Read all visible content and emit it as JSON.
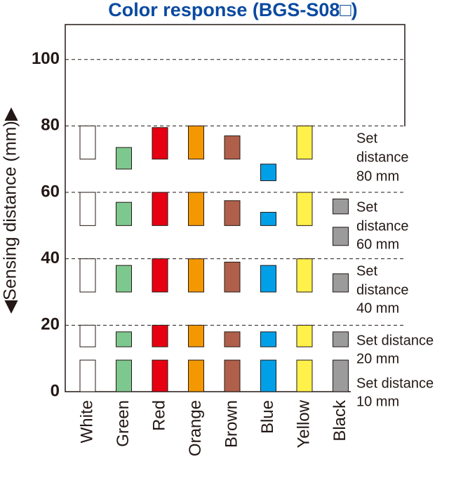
{
  "chart_data": {
    "type": "floating-bar",
    "title": "Color response (BGS-S08□)",
    "y_label": "◀Sensing distance (mm)▶",
    "categories": [
      "White",
      "Green",
      "Red",
      "Orange",
      "Brown",
      "Blue",
      "Yellow",
      "Black"
    ],
    "colors": [
      "#ffffff",
      "#7dc88e",
      "#e60012",
      "#f39800",
      "#b0604a",
      "#00a0e9",
      "#fff04a",
      "#9b9b9b"
    ],
    "ylim": [
      0,
      110.5
    ],
    "yticks": [
      0,
      20,
      40,
      60,
      80,
      100
    ],
    "grid": true,
    "series": [
      {
        "label_lines": [
          "Set",
          "distance",
          "80 mm"
        ],
        "values": [
          [
            [
              70,
              80
            ]
          ],
          [
            [
              67,
              73.5
            ]
          ],
          [
            [
              70,
              79.5
            ]
          ],
          [
            [
              70,
              80
            ]
          ],
          [
            [
              70,
              77
            ]
          ],
          [
            [
              63.5,
              68.5
            ]
          ],
          [
            [
              70,
              80
            ]
          ],
          []
        ]
      },
      {
        "label_lines": [
          "Set",
          "distance",
          "60 mm"
        ],
        "values": [
          [
            [
              50,
              60
            ]
          ],
          [
            [
              50,
              57
            ]
          ],
          [
            [
              50,
              60
            ]
          ],
          [
            [
              50,
              60
            ]
          ],
          [
            [
              50,
              57.5
            ]
          ],
          [
            [
              50,
              54
            ]
          ],
          [
            [
              50,
              60
            ]
          ],
          [
            [
              53.5,
              58
            ],
            [
              44,
              49.5
            ]
          ]
        ]
      },
      {
        "label_lines": [
          "Set",
          "distance",
          "40 mm"
        ],
        "values": [
          [
            [
              30,
              40
            ]
          ],
          [
            [
              30,
              38
            ]
          ],
          [
            [
              30,
              40
            ]
          ],
          [
            [
              30,
              40
            ]
          ],
          [
            [
              30,
              39
            ]
          ],
          [
            [
              30,
              38
            ]
          ],
          [
            [
              30,
              40
            ]
          ],
          [
            [
              30,
              35.5
            ]
          ]
        ]
      },
      {
        "label_lines": [
          "Set distance",
          "20 mm"
        ],
        "values": [
          [
            [
              13.5,
              20
            ]
          ],
          [
            [
              13.5,
              18
            ]
          ],
          [
            [
              13.5,
              20
            ]
          ],
          [
            [
              13.5,
              20
            ]
          ],
          [
            [
              13.5,
              18
            ]
          ],
          [
            [
              13.5,
              18
            ]
          ],
          [
            [
              13.5,
              20
            ]
          ],
          [
            [
              13.5,
              18
            ]
          ]
        ]
      },
      {
        "label_lines": [
          "Set distance",
          "10 mm"
        ],
        "values": [
          [
            [
              0,
              9.5
            ]
          ],
          [
            [
              0,
              9.5
            ]
          ],
          [
            [
              0,
              9.5
            ]
          ],
          [
            [
              0,
              9.5
            ]
          ],
          [
            [
              0,
              9.5
            ]
          ],
          [
            [
              0,
              9.5
            ]
          ],
          [
            [
              0,
              9.5
            ]
          ],
          [
            [
              0,
              9.5
            ]
          ]
        ]
      }
    ]
  }
}
